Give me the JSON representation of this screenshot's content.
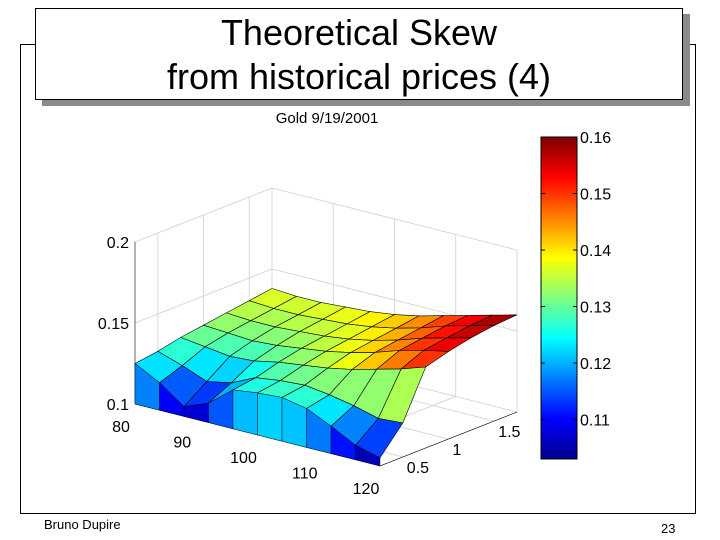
{
  "slide": {
    "title_line1": "Theoretical Skew",
    "title_line2": "from historical prices (4)",
    "footer_author": "Bruno Dupire",
    "page_number": "23"
  },
  "chart_data": {
    "type": "surface3d",
    "subtitle": "Gold 9/19/2001",
    "x_ticks": [
      "80",
      "90",
      "100",
      "110",
      "120"
    ],
    "y_ticks": [
      "0.5",
      "1",
      "1.5"
    ],
    "z_ticks": [
      "0.1",
      "0.15",
      "0.2"
    ],
    "xlim": [
      80,
      120
    ],
    "ylim": [
      0.25,
      1.75
    ],
    "zlim": [
      0.1,
      0.2
    ],
    "colorbar": {
      "range": [
        0.103,
        0.16
      ],
      "ticks": [
        "0.11",
        "0.12",
        "0.13",
        "0.14",
        "0.15",
        "0.16"
      ],
      "colormap": "jet"
    },
    "strikes": [
      80,
      84,
      88,
      92,
      96,
      100,
      104,
      108,
      112,
      116,
      120
    ],
    "maturities": [
      0.25,
      0.5,
      0.75,
      1.0,
      1.25,
      1.5,
      1.75
    ],
    "vol": [
      [
        0.125,
        0.117,
        0.106,
        0.112,
        0.124,
        0.126,
        0.127,
        0.124,
        0.117,
        0.109,
        0.105
      ],
      [
        0.127,
        0.122,
        0.116,
        0.119,
        0.126,
        0.128,
        0.129,
        0.127,
        0.124,
        0.12,
        0.121
      ],
      [
        0.13,
        0.128,
        0.126,
        0.127,
        0.13,
        0.132,
        0.134,
        0.137,
        0.141,
        0.145,
        0.15
      ],
      [
        0.132,
        0.131,
        0.13,
        0.131,
        0.133,
        0.135,
        0.138,
        0.142,
        0.147,
        0.151,
        0.154
      ],
      [
        0.134,
        0.133,
        0.133,
        0.134,
        0.135,
        0.137,
        0.14,
        0.144,
        0.149,
        0.153,
        0.157
      ],
      [
        0.136,
        0.135,
        0.135,
        0.136,
        0.137,
        0.139,
        0.142,
        0.146,
        0.151,
        0.155,
        0.159
      ],
      [
        0.138,
        0.137,
        0.137,
        0.138,
        0.139,
        0.141,
        0.144,
        0.148,
        0.152,
        0.156,
        0.16
      ]
    ]
  }
}
